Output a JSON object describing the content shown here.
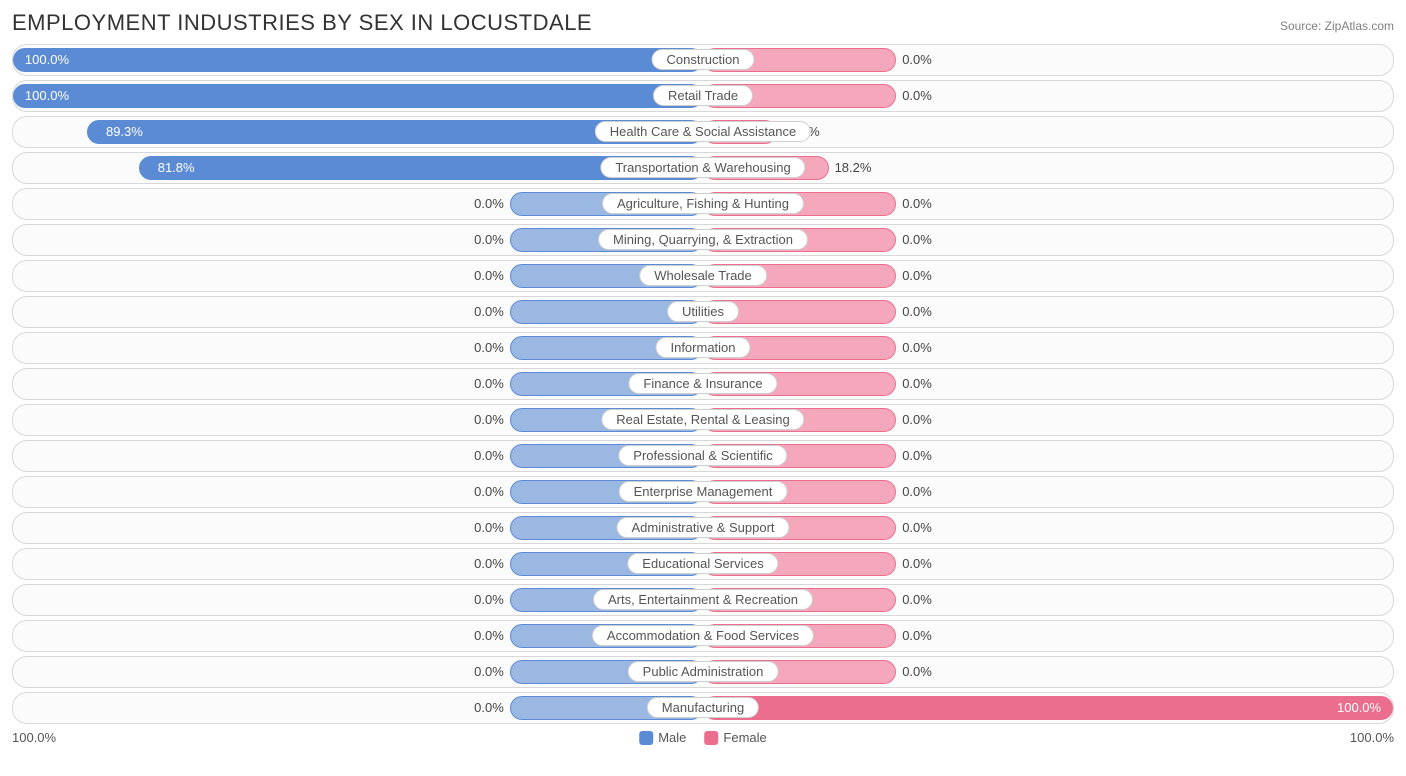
{
  "title": "EMPLOYMENT INDUSTRIES BY SEX IN LOCUSTDALE",
  "source": "Source: ZipAtlas.com",
  "axis_left": "100.0%",
  "axis_right": "100.0%",
  "legend": {
    "male": "Male",
    "female": "Female"
  },
  "colors": {
    "male_fill": "#9bb8e3",
    "male_border": "#5b8bd4",
    "male_strong": "#5b8bd4",
    "female_fill": "#f5a8bb",
    "female_border": "#ec6e8f",
    "female_strong": "#ec6e8f",
    "row_border": "#d8d8d8",
    "row_bg": "#fbfbfb",
    "text": "#444"
  },
  "chart": {
    "type": "diverging-bar",
    "default_bar_pct": 28,
    "rows": [
      {
        "label": "Construction",
        "male": 100.0,
        "female": 0.0,
        "male_label": "100.0%",
        "female_label": "0.0%"
      },
      {
        "label": "Retail Trade",
        "male": 100.0,
        "female": 0.0,
        "male_label": "100.0%",
        "female_label": "0.0%"
      },
      {
        "label": "Health Care & Social Assistance",
        "male": 89.3,
        "female": 10.7,
        "male_label": "89.3%",
        "female_label": "10.7%"
      },
      {
        "label": "Transportation & Warehousing",
        "male": 81.8,
        "female": 18.2,
        "male_label": "81.8%",
        "female_label": "18.2%"
      },
      {
        "label": "Agriculture, Fishing & Hunting",
        "male": 0.0,
        "female": 0.0,
        "male_label": "0.0%",
        "female_label": "0.0%"
      },
      {
        "label": "Mining, Quarrying, & Extraction",
        "male": 0.0,
        "female": 0.0,
        "male_label": "0.0%",
        "female_label": "0.0%"
      },
      {
        "label": "Wholesale Trade",
        "male": 0.0,
        "female": 0.0,
        "male_label": "0.0%",
        "female_label": "0.0%"
      },
      {
        "label": "Utilities",
        "male": 0.0,
        "female": 0.0,
        "male_label": "0.0%",
        "female_label": "0.0%"
      },
      {
        "label": "Information",
        "male": 0.0,
        "female": 0.0,
        "male_label": "0.0%",
        "female_label": "0.0%"
      },
      {
        "label": "Finance & Insurance",
        "male": 0.0,
        "female": 0.0,
        "male_label": "0.0%",
        "female_label": "0.0%"
      },
      {
        "label": "Real Estate, Rental & Leasing",
        "male": 0.0,
        "female": 0.0,
        "male_label": "0.0%",
        "female_label": "0.0%"
      },
      {
        "label": "Professional & Scientific",
        "male": 0.0,
        "female": 0.0,
        "male_label": "0.0%",
        "female_label": "0.0%"
      },
      {
        "label": "Enterprise Management",
        "male": 0.0,
        "female": 0.0,
        "male_label": "0.0%",
        "female_label": "0.0%"
      },
      {
        "label": "Administrative & Support",
        "male": 0.0,
        "female": 0.0,
        "male_label": "0.0%",
        "female_label": "0.0%"
      },
      {
        "label": "Educational Services",
        "male": 0.0,
        "female": 0.0,
        "male_label": "0.0%",
        "female_label": "0.0%"
      },
      {
        "label": "Arts, Entertainment & Recreation",
        "male": 0.0,
        "female": 0.0,
        "male_label": "0.0%",
        "female_label": "0.0%"
      },
      {
        "label": "Accommodation & Food Services",
        "male": 0.0,
        "female": 0.0,
        "male_label": "0.0%",
        "female_label": "0.0%"
      },
      {
        "label": "Public Administration",
        "male": 0.0,
        "female": 0.0,
        "male_label": "0.0%",
        "female_label": "0.0%"
      },
      {
        "label": "Manufacturing",
        "male": 0.0,
        "female": 100.0,
        "male_label": "0.0%",
        "female_label": "100.0%"
      }
    ]
  }
}
